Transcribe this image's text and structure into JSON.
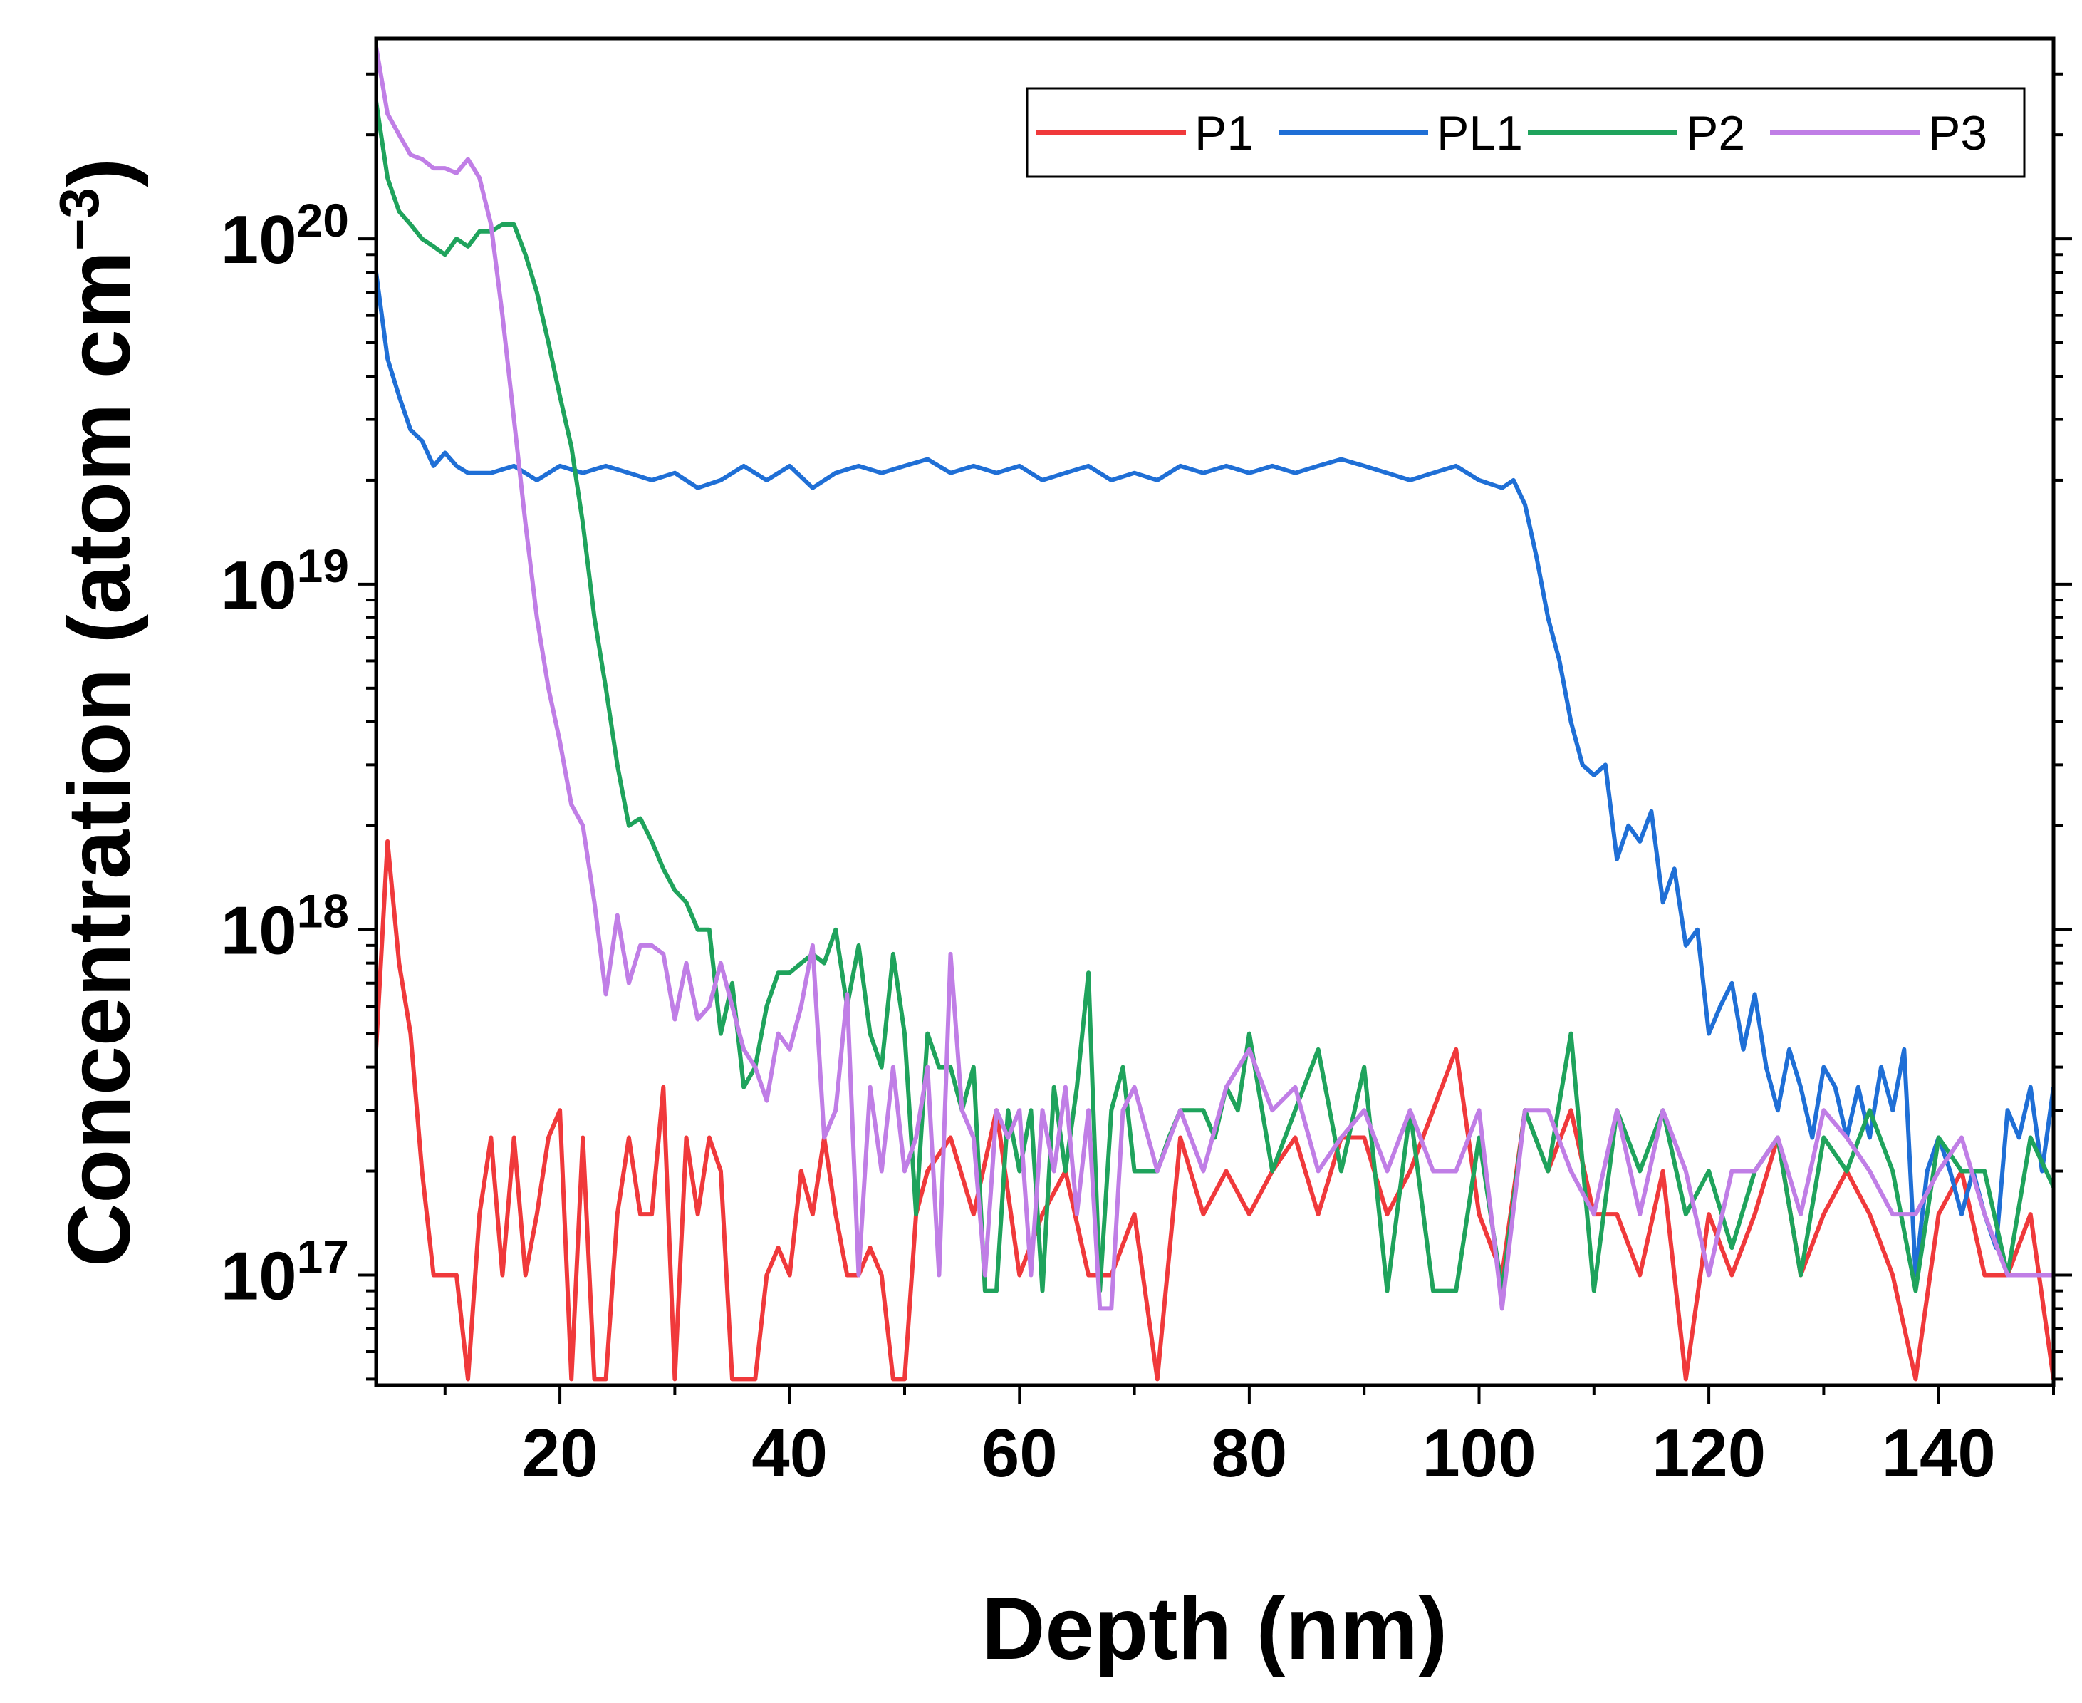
{
  "chart_data": {
    "type": "line",
    "title": "",
    "xlabel": "Depth (nm)",
    "ylabel_main": "Concentration (atom cm",
    "ylabel_sup": "−3",
    "ylabel_close": ")",
    "xlim": [
      4,
      150
    ],
    "ylim": [
      4.8e+16,
      3.8e+20
    ],
    "yscale": "log",
    "grid": false,
    "legend_position": "top-right",
    "x_ticks": [
      {
        "value": 20,
        "label": "20"
      },
      {
        "value": 40,
        "label": "40"
      },
      {
        "value": 60,
        "label": "60"
      },
      {
        "value": 80,
        "label": "80"
      },
      {
        "value": 100,
        "label": "100"
      },
      {
        "value": 120,
        "label": "120"
      },
      {
        "value": 140,
        "label": "140"
      }
    ],
    "y_ticks": [
      {
        "value": 1e+17,
        "base": "10",
        "exp": "17"
      },
      {
        "value": 1e+18,
        "base": "10",
        "exp": "18"
      },
      {
        "value": 1e+19,
        "base": "10",
        "exp": "19"
      },
      {
        "value": 1e+20,
        "base": "10",
        "exp": "20"
      }
    ],
    "series": [
      {
        "name": "P1",
        "color": "#f0393b",
        "x": [
          4,
          5,
          6,
          7,
          8,
          9,
          10,
          11,
          12,
          13,
          14,
          15,
          16,
          17,
          18,
          19,
          20,
          21,
          22,
          23,
          24,
          25,
          26,
          27,
          28,
          29,
          30,
          31,
          32,
          33,
          34,
          35,
          36,
          37,
          38,
          39,
          40,
          41,
          42,
          43,
          44,
          45,
          46,
          47,
          48,
          49,
          50,
          51,
          52,
          54,
          56,
          58,
          60,
          62,
          64,
          66,
          68,
          70,
          72,
          74,
          76,
          78,
          80,
          82,
          84,
          86,
          88,
          90,
          92,
          94,
          96,
          98,
          100,
          102,
          104,
          106,
          108,
          110,
          112,
          114,
          116,
          118,
          120,
          122,
          124,
          126,
          128,
          130,
          132,
          134,
          136,
          138,
          140,
          142,
          144,
          146,
          148,
          150
        ],
        "values": [
          4.5e+17,
          1.8e+18,
          8e+17,
          5e+17,
          2e+17,
          1e+17,
          1e+17,
          1e+17,
          5e+16,
          1.5e+17,
          2.5e+17,
          1e+17,
          2.5e+17,
          1e+17,
          1.5e+17,
          2.5e+17,
          3e+17,
          5e+16,
          2.5e+17,
          5e+16,
          5e+16,
          1.5e+17,
          2.5e+17,
          1.5e+17,
          1.5e+17,
          3.5e+17,
          5e+16,
          2.5e+17,
          1.5e+17,
          2.5e+17,
          2e+17,
          5e+16,
          5e+16,
          5e+16,
          1e+17,
          1.2e+17,
          1e+17,
          2e+17,
          1.5e+17,
          2.5e+17,
          1.5e+17,
          1e+17,
          1e+17,
          1.2e+17,
          1e+17,
          5e+16,
          5e+16,
          1.5e+17,
          2e+17,
          2.5e+17,
          1.5e+17,
          3e+17,
          1e+17,
          1.5e+17,
          2e+17,
          1e+17,
          1e+17,
          1.5e+17,
          5e+16,
          2.5e+17,
          1.5e+17,
          2e+17,
          1.5e+17,
          2e+17,
          2.5e+17,
          1.5e+17,
          2.5e+17,
          2.5e+17,
          1.5e+17,
          2e+17,
          3e+17,
          4.5e+17,
          1.5e+17,
          1e+17,
          3e+17,
          2e+17,
          3e+17,
          1.5e+17,
          1.5e+17,
          1e+17,
          2e+17,
          5e+16,
          1.5e+17,
          1e+17,
          1.5e+17,
          2.5e+17,
          1e+17,
          1.5e+17,
          2e+17,
          1.5e+17,
          1e+17,
          5e+16,
          1.5e+17,
          2e+17,
          1e+17,
          1e+17,
          1.5e+17,
          5e+16
        ]
      },
      {
        "name": "PL1",
        "color": "#1f6fd6",
        "x": [
          4,
          5,
          6,
          7,
          8,
          9,
          10,
          11,
          12,
          14,
          16,
          18,
          20,
          22,
          24,
          26,
          28,
          30,
          32,
          34,
          36,
          38,
          40,
          42,
          44,
          46,
          48,
          50,
          52,
          54,
          56,
          58,
          60,
          62,
          64,
          66,
          68,
          70,
          72,
          74,
          76,
          78,
          80,
          82,
          84,
          86,
          88,
          90,
          92,
          94,
          96,
          98,
          100,
          102,
          103,
          104,
          105,
          106,
          107,
          108,
          109,
          110,
          111,
          112,
          113,
          114,
          115,
          116,
          117,
          118,
          119,
          120,
          121,
          122,
          123,
          124,
          125,
          126,
          127,
          128,
          129,
          130,
          131,
          132,
          133,
          134,
          135,
          136,
          137,
          138,
          139,
          140,
          141,
          142,
          143,
          144,
          145,
          146,
          147,
          148,
          149,
          150
        ],
        "values": [
          8e+19,
          4.5e+19,
          3.5e+19,
          2.8e+19,
          2.6e+19,
          2.2e+19,
          2.4e+19,
          2.2e+19,
          2.1e+19,
          2.1e+19,
          2.2e+19,
          2e+19,
          2.2e+19,
          2.1e+19,
          2.2e+19,
          2.1e+19,
          2e+19,
          2.1e+19,
          1.9e+19,
          2e+19,
          2.2e+19,
          2e+19,
          2.2e+19,
          1.9e+19,
          2.1e+19,
          2.2e+19,
          2.1e+19,
          2.2e+19,
          2.3e+19,
          2.1e+19,
          2.2e+19,
          2.1e+19,
          2.2e+19,
          2e+19,
          2.1e+19,
          2.2e+19,
          2e+19,
          2.1e+19,
          2e+19,
          2.2e+19,
          2.1e+19,
          2.2e+19,
          2.1e+19,
          2.2e+19,
          2.1e+19,
          2.2e+19,
          2.3e+19,
          2.2e+19,
          2.1e+19,
          2e+19,
          2.1e+19,
          2.2e+19,
          2e+19,
          1.9e+19,
          2e+19,
          1.7e+19,
          1.2e+19,
          8e+18,
          6e+18,
          4e+18,
          3e+18,
          2.8e+18,
          3e+18,
          1.6e+18,
          2e+18,
          1.8e+18,
          2.2e+18,
          1.2e+18,
          1.5e+18,
          9e+17,
          1e+18,
          5e+17,
          6e+17,
          7e+17,
          4.5e+17,
          6.5e+17,
          4e+17,
          3e+17,
          4.5e+17,
          3.5e+17,
          2.5e+17,
          4e+17,
          3.5e+17,
          2.5e+17,
          3.5e+17,
          2.5e+17,
          4e+17,
          3e+17,
          4.5e+17,
          1e+17,
          2e+17,
          2.5e+17,
          2e+17,
          1.5e+17,
          2e+17,
          1.5e+17,
          1.2e+17,
          3e+17,
          2.5e+17,
          3.5e+17,
          2e+17,
          3.5e+17
        ]
      },
      {
        "name": "P2",
        "color": "#1fa35c",
        "x": [
          4,
          5,
          6,
          7,
          8,
          9,
          10,
          11,
          12,
          13,
          14,
          15,
          16,
          17,
          18,
          19,
          20,
          21,
          22,
          23,
          24,
          25,
          26,
          27,
          28,
          29,
          30,
          31,
          32,
          33,
          34,
          35,
          36,
          37,
          38,
          39,
          40,
          41,
          42,
          43,
          44,
          45,
          46,
          47,
          48,
          49,
          50,
          51,
          52,
          53,
          54,
          55,
          56,
          57,
          58,
          59,
          60,
          61,
          62,
          63,
          64,
          65,
          66,
          67,
          68,
          69,
          70,
          71,
          72,
          73,
          74,
          75,
          76,
          77,
          78,
          79,
          80,
          82,
          84,
          86,
          88,
          90,
          92,
          94,
          96,
          98,
          100,
          102,
          104,
          106,
          108,
          110,
          112,
          114,
          116,
          118,
          120,
          122,
          124,
          126,
          128,
          130,
          132,
          134,
          136,
          138,
          140,
          142,
          144,
          146,
          148,
          150
        ],
        "values": [
          2.5e+20,
          1.5e+20,
          1.2e+20,
          1.1e+20,
          1e+20,
          9.5e+19,
          9e+19,
          1e+20,
          9.5e+19,
          1.05e+20,
          1.05e+20,
          1.1e+20,
          1.1e+20,
          9e+19,
          7e+19,
          5e+19,
          3.5e+19,
          2.5e+19,
          1.5e+19,
          8e+18,
          5e+18,
          3e+18,
          2e+18,
          2.1e+18,
          1.8e+18,
          1.5e+18,
          1.3e+18,
          1.2e+18,
          1e+18,
          1e+18,
          5e+17,
          7e+17,
          3.5e+17,
          4e+17,
          6e+17,
          7.5e+17,
          7.5e+17,
          8e+17,
          8.5e+17,
          8e+17,
          1e+18,
          6e+17,
          9e+17,
          5e+17,
          4e+17,
          8.5e+17,
          5e+17,
          1.5e+17,
          5e+17,
          4e+17,
          4e+17,
          3e+17,
          4e+17,
          9e+16,
          9e+16,
          3e+17,
          2e+17,
          3e+17,
          9e+16,
          3.5e+17,
          2e+17,
          3.5e+17,
          7.5e+17,
          9e+16,
          3e+17,
          4e+17,
          2e+17,
          2e+17,
          2e+17,
          2.5e+17,
          3e+17,
          3e+17,
          3e+17,
          2.5e+17,
          3.5e+17,
          3e+17,
          5e+17,
          2e+17,
          3e+17,
          4.5e+17,
          2e+17,
          4e+17,
          9e+16,
          3e+17,
          9e+16,
          9e+16,
          2.5e+17,
          9e+16,
          3e+17,
          2e+17,
          5e+17,
          9e+16,
          3e+17,
          2e+17,
          3e+17,
          1.5e+17,
          2e+17,
          1.2e+17,
          2e+17,
          2.5e+17,
          1e+17,
          2.5e+17,
          2e+17,
          3e+17,
          2e+17,
          9e+16,
          2.5e+17,
          2e+17,
          2e+17,
          1e+17,
          2.5e+17,
          1.8e+17
        ]
      },
      {
        "name": "P3",
        "color": "#c07ee6",
        "x": [
          4,
          5,
          6,
          7,
          8,
          9,
          10,
          11,
          12,
          13,
          14,
          15,
          16,
          17,
          18,
          19,
          20,
          21,
          22,
          23,
          24,
          25,
          26,
          27,
          28,
          29,
          30,
          31,
          32,
          33,
          34,
          35,
          36,
          37,
          38,
          39,
          40,
          41,
          42,
          43,
          44,
          45,
          46,
          47,
          48,
          49,
          50,
          51,
          52,
          53,
          54,
          55,
          56,
          57,
          58,
          59,
          60,
          61,
          62,
          63,
          64,
          65,
          66,
          67,
          68,
          69,
          70,
          72,
          74,
          76,
          78,
          80,
          82,
          84,
          86,
          88,
          90,
          92,
          94,
          96,
          98,
          100,
          102,
          104,
          106,
          108,
          110,
          112,
          114,
          116,
          118,
          120,
          122,
          124,
          126,
          128,
          130,
          132,
          134,
          136,
          138,
          140,
          142,
          144,
          146,
          148,
          150
        ],
        "values": [
          3.6e+20,
          2.3e+20,
          2e+20,
          1.75e+20,
          1.7e+20,
          1.6e+20,
          1.6e+20,
          1.55e+20,
          1.7e+20,
          1.5e+20,
          1.1e+20,
          6e+19,
          3e+19,
          1.5e+19,
          8e+18,
          5e+18,
          3.5e+18,
          2.3e+18,
          2e+18,
          1.2e+18,
          6.5e+17,
          1.1e+18,
          7e+17,
          9e+17,
          9e+17,
          8.5e+17,
          5.5e+17,
          8e+17,
          5.5e+17,
          6e+17,
          8e+17,
          6e+17,
          4.5e+17,
          4e+17,
          3.2e+17,
          5e+17,
          4.5e+17,
          6e+17,
          9e+17,
          2.5e+17,
          3e+17,
          6.5e+17,
          1e+17,
          3.5e+17,
          2e+17,
          4e+17,
          2e+17,
          2.5e+17,
          4e+17,
          1e+17,
          8.5e+17,
          3e+17,
          2.5e+17,
          1e+17,
          3e+17,
          2.5e+17,
          3e+17,
          1e+17,
          3e+17,
          2e+17,
          3.5e+17,
          1.5e+17,
          3e+17,
          8e+16,
          8e+16,
          3e+17,
          3.5e+17,
          2e+17,
          3e+17,
          2e+17,
          3.5e+17,
          4.5e+17,
          3e+17,
          3.5e+17,
          2e+17,
          2.5e+17,
          3e+17,
          2e+17,
          3e+17,
          2e+17,
          2e+17,
          3e+17,
          8e+16,
          3e+17,
          3e+17,
          2e+17,
          1.5e+17,
          3e+17,
          1.5e+17,
          3e+17,
          2e+17,
          1e+17,
          2e+17,
          2e+17,
          2.5e+17,
          1.5e+17,
          3e+17,
          2.5e+17,
          2e+17,
          1.5e+17,
          1.5e+17,
          2e+17,
          2.5e+17,
          1.5e+17,
          1e+17,
          1e+17,
          1e+17
        ]
      }
    ]
  }
}
